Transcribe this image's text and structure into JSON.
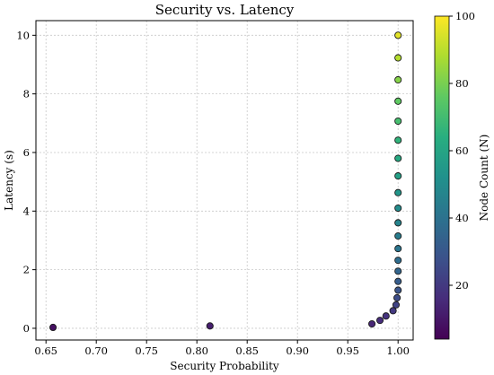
{
  "chart_data": {
    "type": "scatter",
    "title": "Security vs. Latency",
    "xlabel": "Security Probability",
    "ylabel": "Latency (s)",
    "xlim": [
      0.64,
      1.015
    ],
    "ylim": [
      -0.4,
      10.5
    ],
    "x_ticks": [
      "0.65",
      "0.70",
      "0.75",
      "0.80",
      "0.85",
      "0.90",
      "0.95",
      "1.00"
    ],
    "y_ticks": [
      "0",
      "2",
      "4",
      "6",
      "8",
      "10"
    ],
    "grid": true,
    "colormap": "viridis",
    "colorbar": {
      "label": "Node Count (N)",
      "range": [
        4,
        100
      ],
      "ticks": [
        "20",
        "40",
        "60",
        "80",
        "100"
      ]
    },
    "points": [
      {
        "x": 0.657,
        "y": 0.03,
        "n": 8
      },
      {
        "x": 0.813,
        "y": 0.08,
        "n": 12
      },
      {
        "x": 0.974,
        "y": 0.15,
        "n": 14
      },
      {
        "x": 0.982,
        "y": 0.27,
        "n": 16
      },
      {
        "x": 0.988,
        "y": 0.42,
        "n": 18
      },
      {
        "x": 0.995,
        "y": 0.6,
        "n": 20
      },
      {
        "x": 0.998,
        "y": 0.8,
        "n": 23
      },
      {
        "x": 0.999,
        "y": 1.04,
        "n": 26
      },
      {
        "x": 1.0,
        "y": 1.3,
        "n": 29
      },
      {
        "x": 1.0,
        "y": 1.6,
        "n": 32
      },
      {
        "x": 1.0,
        "y": 1.95,
        "n": 35
      },
      {
        "x": 1.0,
        "y": 2.32,
        "n": 38
      },
      {
        "x": 1.0,
        "y": 2.72,
        "n": 41
      },
      {
        "x": 1.0,
        "y": 3.15,
        "n": 44
      },
      {
        "x": 1.0,
        "y": 3.6,
        "n": 47
      },
      {
        "x": 1.0,
        "y": 4.1,
        "n": 50
      },
      {
        "x": 1.0,
        "y": 4.63,
        "n": 54
      },
      {
        "x": 1.0,
        "y": 5.2,
        "n": 58
      },
      {
        "x": 1.0,
        "y": 5.8,
        "n": 62
      },
      {
        "x": 1.0,
        "y": 6.42,
        "n": 66
      },
      {
        "x": 1.0,
        "y": 7.07,
        "n": 71
      },
      {
        "x": 1.0,
        "y": 7.75,
        "n": 76
      },
      {
        "x": 1.0,
        "y": 8.48,
        "n": 82
      },
      {
        "x": 1.0,
        "y": 9.23,
        "n": 89
      },
      {
        "x": 1.0,
        "y": 10.0,
        "n": 96
      }
    ]
  }
}
